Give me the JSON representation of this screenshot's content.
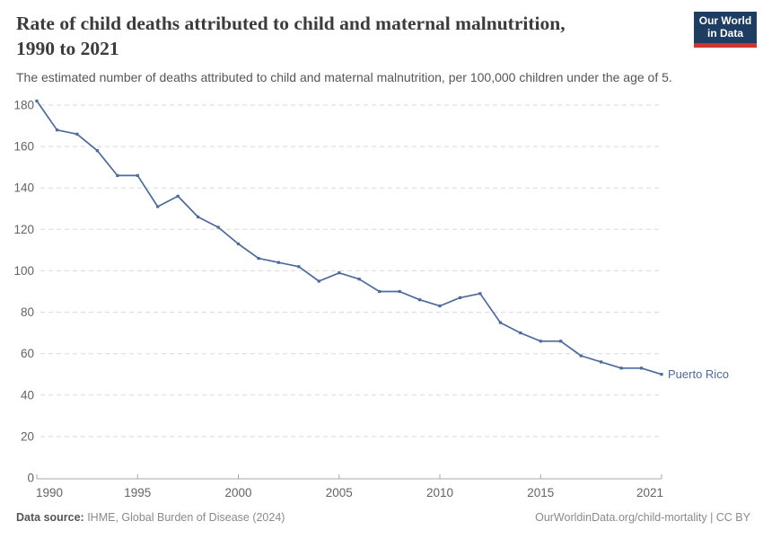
{
  "header": {
    "title_line1": "Rate of child deaths attributed to child and maternal malnutrition,",
    "title_line2": "1990 to 2021",
    "subtitle": "The estimated number of deaths attributed to child and maternal malnutrition, per 100,000 children under the age of 5.",
    "logo": {
      "line1": "Our World",
      "line2": "in Data"
    }
  },
  "chart_data": {
    "type": "line",
    "title": "Rate of child deaths attributed to child and maternal malnutrition, 1990 to 2021",
    "xlabel": "",
    "ylabel": "",
    "ylim": [
      0,
      180
    ],
    "yticks": [
      0,
      20,
      40,
      60,
      80,
      100,
      120,
      140,
      160,
      180
    ],
    "xticks": [
      1990,
      1995,
      2000,
      2005,
      2010,
      2015,
      2021
    ],
    "x_range": [
      1990,
      2021
    ],
    "grid": "horizontal-dashed",
    "legend_position": "end-of-line-label",
    "series": [
      {
        "name": "Puerto Rico",
        "color": "#4c6a9c",
        "x": [
          1990,
          1991,
          1992,
          1993,
          1994,
          1995,
          1996,
          1997,
          1998,
          1999,
          2000,
          2001,
          2002,
          2003,
          2004,
          2005,
          2006,
          2007,
          2008,
          2009,
          2010,
          2011,
          2012,
          2013,
          2014,
          2015,
          2016,
          2017,
          2018,
          2019,
          2020,
          2021
        ],
        "values": [
          182,
          168,
          166,
          158,
          146,
          146,
          131,
          136,
          126,
          121,
          113,
          106,
          104,
          102,
          95,
          99,
          96,
          90,
          90,
          86,
          83,
          87,
          89,
          75,
          70,
          66,
          66,
          59,
          56,
          53,
          53,
          50
        ]
      }
    ]
  },
  "footer": {
    "datasource_label": "Data source:",
    "datasource_value": " IHME, Global Burden of Disease (2024)",
    "credit": "OurWorldinData.org/child-mortality | CC BY"
  },
  "colors": {
    "accent_line": "#4c6a9c",
    "grid": "#d9d9d9",
    "axis": "#a8a8a8",
    "tick_label": "#636363",
    "logo_bg": "#1d3d63",
    "logo_accent": "#cf352e"
  }
}
